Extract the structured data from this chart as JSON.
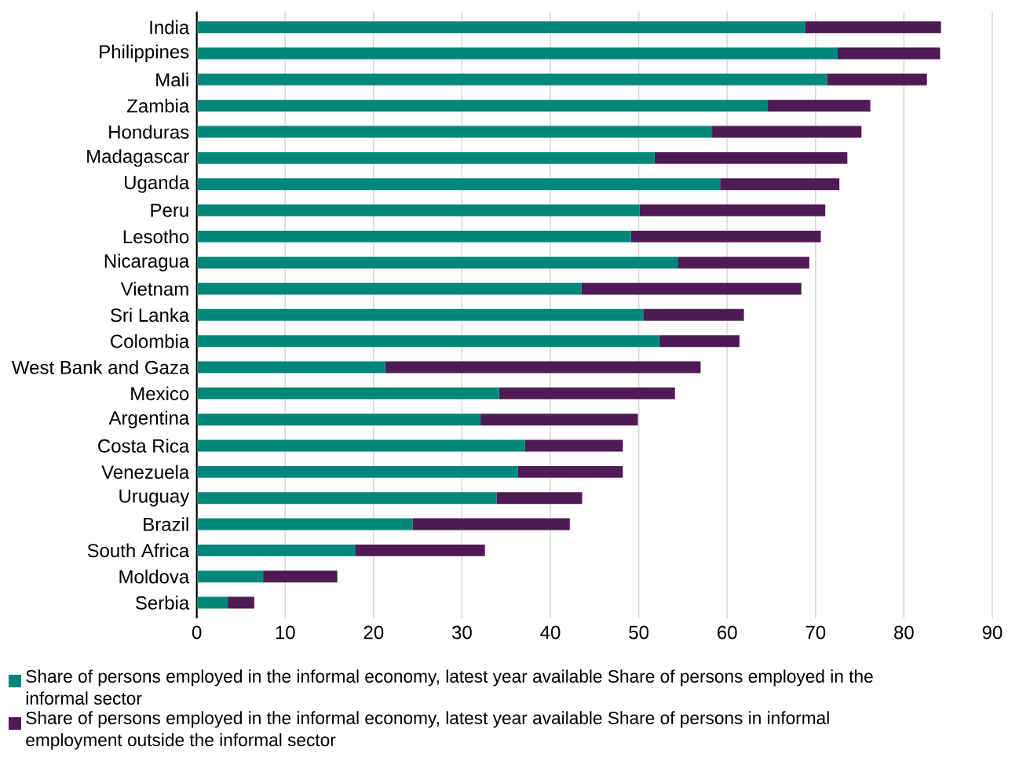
{
  "chart_data": {
    "type": "bar",
    "orientation": "horizontal",
    "stacked": true,
    "categories": [
      "India",
      "Philippines",
      "Mali",
      "Zambia",
      "Honduras",
      "Madagascar",
      "Uganda",
      "Peru",
      "Lesotho",
      "Nicaragua",
      "Vietnam",
      "Sri Lanka",
      "Colombia",
      "West Bank and Gaza",
      "Mexico",
      "Argentina",
      "Costa Rica",
      "Venezuela",
      "Uruguay",
      "Brazil",
      "South Africa",
      "Moldova",
      "Serbia"
    ],
    "series": [
      {
        "name": "Share of persons employed in the informal economy, latest year available Share of persons employed in the informal sector",
        "color": "#00877a",
        "values": [
          68.8,
          72.5,
          71.3,
          64.6,
          58.3,
          51.8,
          59.2,
          50.1,
          49.1,
          54.4,
          43.5,
          50.5,
          52.3,
          21.3,
          34.2,
          32.1,
          37.1,
          36.3,
          33.9,
          24.4,
          17.9,
          7.5,
          3.5
        ]
      },
      {
        "name": "Share of persons employed in the informal economy, latest year available Share of persons in informal employment outside the informal sector",
        "color": "#4f1a55",
        "values": [
          15.4,
          11.6,
          11.3,
          11.6,
          16.9,
          21.8,
          13.5,
          21.0,
          21.5,
          14.9,
          24.9,
          11.4,
          9.1,
          35.7,
          19.9,
          17.8,
          11.1,
          11.9,
          9.7,
          17.8,
          14.7,
          8.4,
          3.0
        ]
      }
    ],
    "xlim": [
      0,
      90
    ],
    "xticks": [
      0,
      10,
      20,
      30,
      40,
      50,
      60,
      70,
      80,
      90
    ],
    "grid": "x",
    "legend": "bottom"
  }
}
